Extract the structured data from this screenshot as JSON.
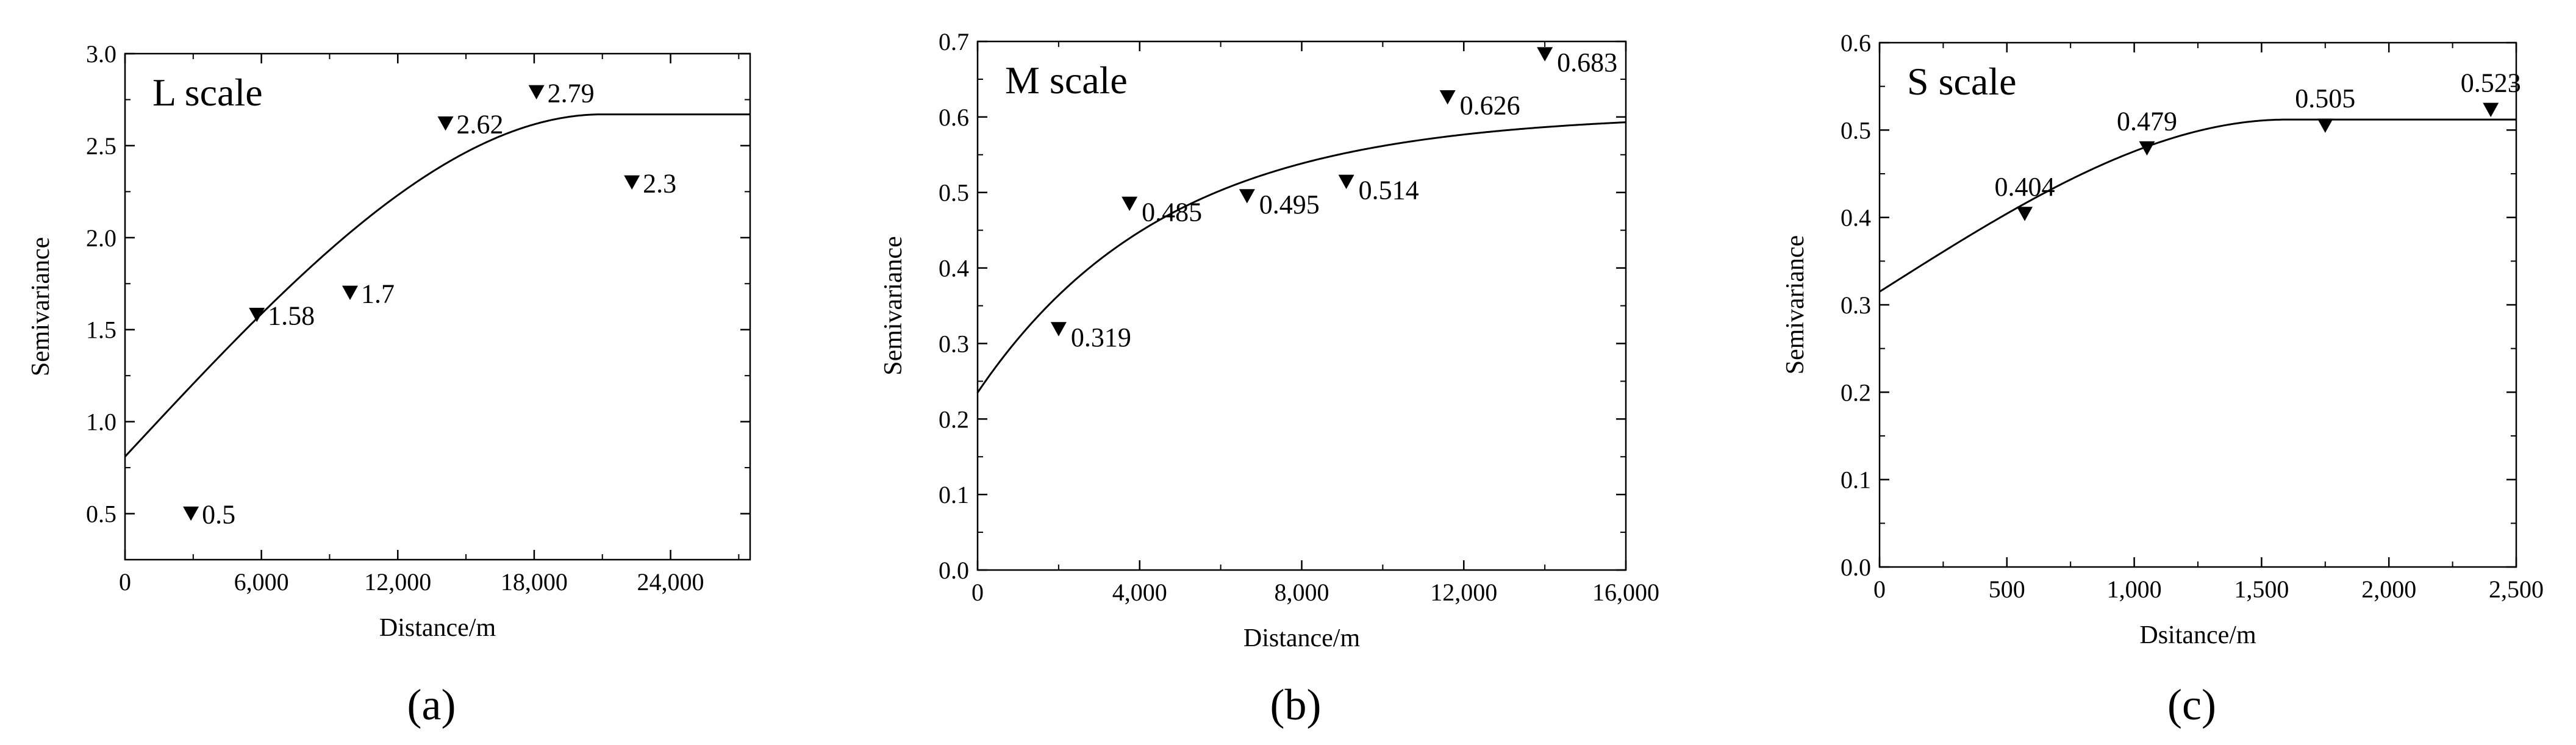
{
  "chart_data": [
    {
      "type": "scatter",
      "panel": "(a)",
      "title": "L scale",
      "xlabel": "Distance/m",
      "ylabel": "Semivariance",
      "xlim": [
        0,
        27500
      ],
      "ylim": [
        0.25,
        3.0
      ],
      "xticks": [
        0,
        6000,
        12000,
        18000,
        24000
      ],
      "xtick_labels": [
        "0",
        "6,000",
        "12,000",
        "18,000",
        "24,000"
      ],
      "yticks": [
        0.5,
        1.0,
        1.5,
        2.0,
        2.5,
        3.0
      ],
      "ytick_labels": [
        "0.5",
        "1.0",
        "1.5",
        "2.0",
        "2.5",
        "3.0"
      ],
      "points": [
        {
          "x": 2900,
          "y": 0.5,
          "label": "0.5"
        },
        {
          "x": 5800,
          "y": 1.58,
          "label": "1.58"
        },
        {
          "x": 9900,
          "y": 1.7,
          "label": "1.7"
        },
        {
          "x": 14100,
          "y": 2.62,
          "label": "2.62"
        },
        {
          "x": 18100,
          "y": 2.79,
          "label": "2.79"
        },
        {
          "x": 22300,
          "y": 2.3,
          "label": "2.3"
        }
      ],
      "curve": {
        "model": "spherical",
        "nugget": 0.81,
        "sill": 2.67,
        "range": 21000
      }
    },
    {
      "type": "scatter",
      "panel": "(b)",
      "title": "M scale",
      "xlabel": "Distance/m",
      "ylabel": "Semivariance",
      "xlim": [
        0,
        16000
      ],
      "ylim": [
        0.0,
        0.7
      ],
      "xticks": [
        0,
        4000,
        8000,
        12000,
        16000
      ],
      "xtick_labels": [
        "0",
        "4,000",
        "8,000",
        "12,000",
        "16,000"
      ],
      "yticks": [
        0.0,
        0.1,
        0.2,
        0.3,
        0.4,
        0.5,
        0.6,
        0.7
      ],
      "ytick_labels": [
        "0.0",
        "0.1",
        "0.2",
        "0.3",
        "0.4",
        "0.5",
        "0.6",
        "0.7"
      ],
      "points": [
        {
          "x": 2000,
          "y": 0.319,
          "label": "0.319"
        },
        {
          "x": 3750,
          "y": 0.485,
          "label": "0.485"
        },
        {
          "x": 6650,
          "y": 0.495,
          "label": "0.495"
        },
        {
          "x": 9100,
          "y": 0.514,
          "label": "0.514"
        },
        {
          "x": 11600,
          "y": 0.626,
          "label": "0.626"
        },
        {
          "x": 14000,
          "y": 0.683,
          "label": "0.683"
        }
      ],
      "curve": {
        "model": "exponential",
        "nugget": 0.235,
        "sill": 0.605,
        "range": 14000
      }
    },
    {
      "type": "scatter",
      "panel": "(c)",
      "title": "S scale",
      "xlabel": "Dsitance/m",
      "ylabel": "Semivariance",
      "xlim": [
        0,
        2500
      ],
      "ylim": [
        0.0,
        0.6
      ],
      "xticks": [
        0,
        500,
        1000,
        1500,
        2000,
        2500
      ],
      "xtick_labels": [
        "0",
        "500",
        "1,000",
        "1,500",
        "2,000",
        "2,500"
      ],
      "yticks": [
        0.0,
        0.1,
        0.2,
        0.3,
        0.4,
        0.5,
        0.6
      ],
      "ytick_labels": [
        "0.0",
        "0.1",
        "0.2",
        "0.3",
        "0.4",
        "0.5",
        "0.6"
      ],
      "points": [
        {
          "x": 570,
          "y": 0.404,
          "label": "0.404"
        },
        {
          "x": 1050,
          "y": 0.479,
          "label": "0.479"
        },
        {
          "x": 1750,
          "y": 0.505,
          "label": "0.505"
        },
        {
          "x": 2400,
          "y": 0.523,
          "label": "0.523"
        }
      ],
      "curve": {
        "model": "spherical",
        "nugget": 0.315,
        "sill": 0.512,
        "range": 1600
      }
    }
  ]
}
